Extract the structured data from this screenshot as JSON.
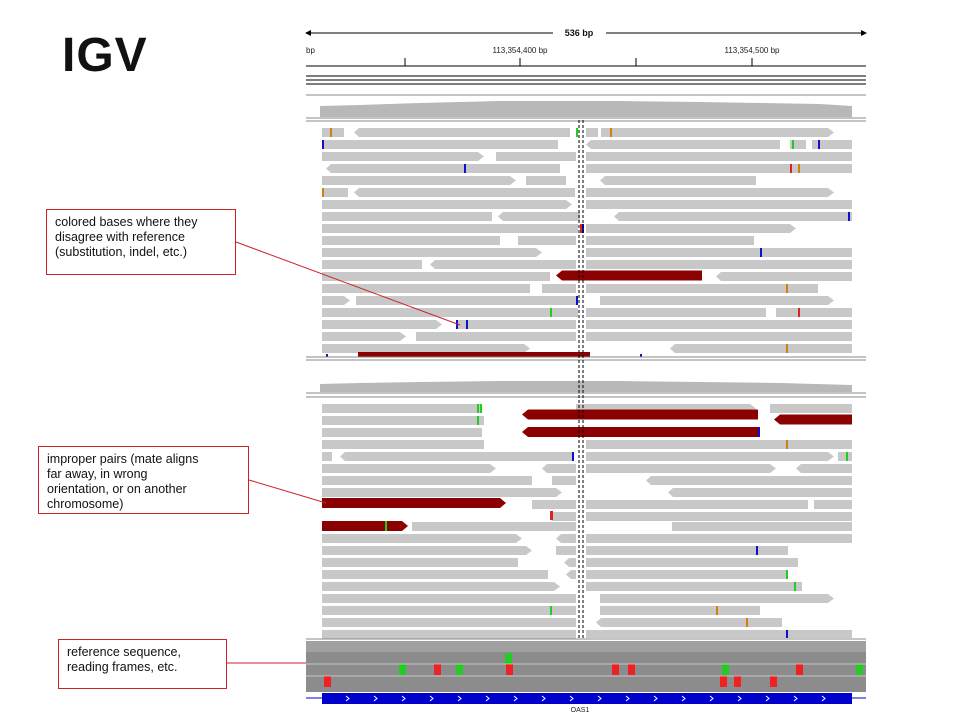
{
  "header": {
    "title": "IGV"
  },
  "ruler": {
    "span_label": "536 bp",
    "left_label": "bp",
    "tick_label_1": "113,354,400 bp",
    "tick_label_2": "113,354,500 bp"
  },
  "annotations": {
    "colored_bases": "colored bases where they\ndisagree with reference\n(substitution, indel, etc.)",
    "improper_pairs": "improper pairs (mate aligns\nfar away, in wrong\norientation, or on another\nchromosome)",
    "reference_sequence": "reference sequence,\nreading frames, etc."
  },
  "gene": {
    "name": "OAS1"
  },
  "colors": {
    "read": "#c8c8c8",
    "improper_pair": "#8b0000",
    "coverage": "#b8b8b8",
    "gene": "#0000cc",
    "callout_border": "#cc2222",
    "base_A": "#22cc22",
    "base_C": "#1010cc",
    "base_G": "#d08010",
    "base_T": "#dd2222"
  }
}
